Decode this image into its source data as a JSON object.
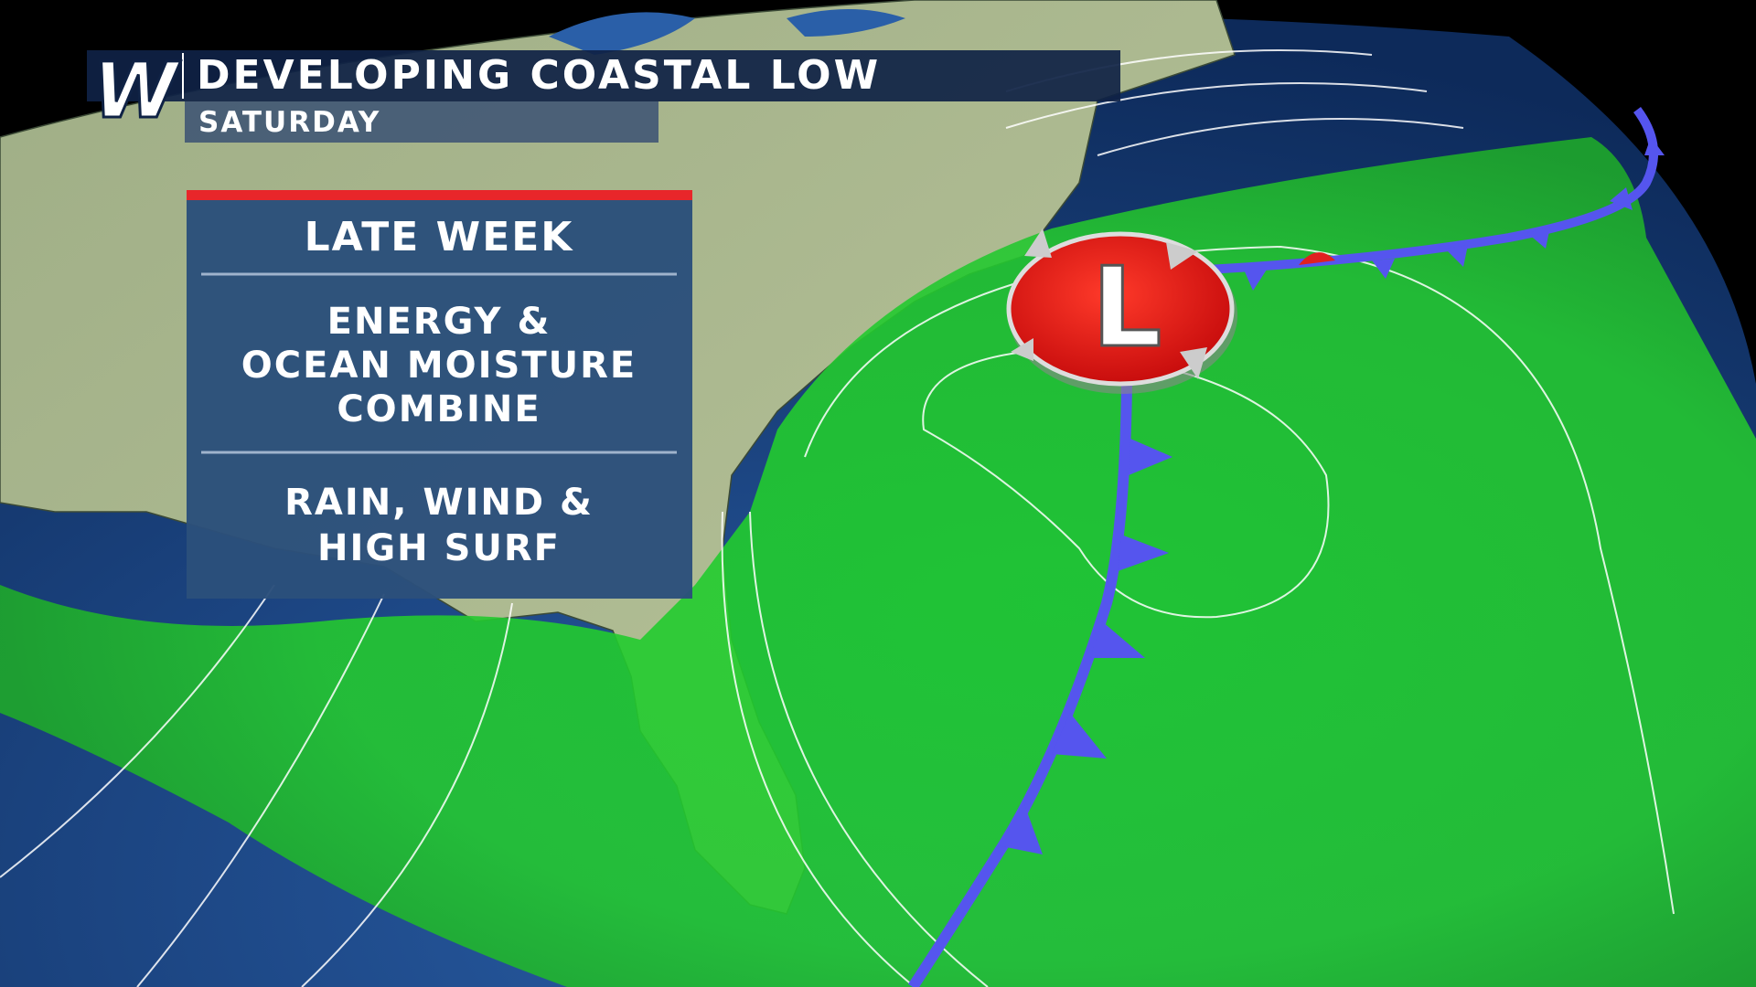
{
  "header": {
    "logo": "W",
    "title": "DEVELOPING COASTAL LOW",
    "subtitle": "SATURDAY"
  },
  "panel": {
    "sections": [
      [
        "LATE WEEK"
      ],
      [
        "ENERGY &",
        "OCEAN MOISTURE",
        "COMBINE"
      ],
      [
        "RAIN, WIND &",
        "HIGH SURF"
      ]
    ]
  },
  "map": {
    "low_label": "L"
  }
}
